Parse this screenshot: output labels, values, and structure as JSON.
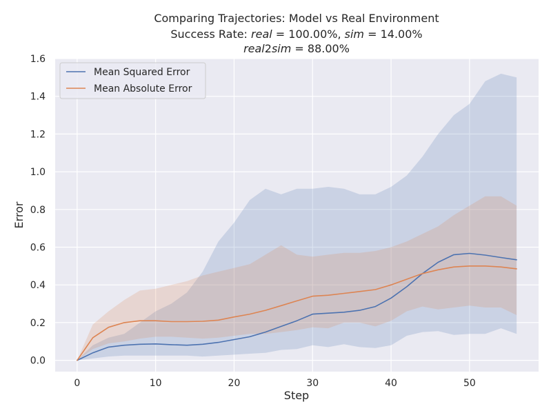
{
  "chart_data": {
    "type": "line",
    "title_lines": [
      "Comparing Trajectories: Model vs Real Environment",
      "Success Rate: real = 100.00%, sim = 14.00%",
      "real2sim = 88.00%"
    ],
    "xlabel": "Step",
    "ylabel": "Error",
    "xlim": [
      -2.8,
      58.8
    ],
    "ylim": [
      -0.06,
      1.6
    ],
    "x_ticks": [
      0,
      10,
      20,
      30,
      40,
      50
    ],
    "y_ticks": [
      0.0,
      0.2,
      0.4,
      0.6,
      0.8,
      1.0,
      1.2,
      1.4,
      1.6
    ],
    "grid": true,
    "legend_position": "upper-left",
    "series": [
      {
        "name": "Mean Squared Error",
        "color": "#4c72b0",
        "x": [
          0,
          2,
          4,
          6,
          8,
          10,
          12,
          14,
          16,
          18,
          20,
          22,
          24,
          26,
          28,
          30,
          32,
          34,
          36,
          38,
          40,
          42,
          44,
          46,
          48,
          50,
          52,
          54,
          56
        ],
        "mean": [
          0.0,
          0.04,
          0.07,
          0.08,
          0.085,
          0.087,
          0.083,
          0.08,
          0.085,
          0.095,
          0.11,
          0.125,
          0.15,
          0.18,
          0.21,
          0.245,
          0.25,
          0.255,
          0.265,
          0.285,
          0.33,
          0.39,
          0.46,
          0.52,
          0.56,
          0.567,
          0.558,
          0.545,
          0.533
        ],
        "lower": [
          0.0,
          0.01,
          0.02,
          0.025,
          0.025,
          0.025,
          0.025,
          0.025,
          0.02,
          0.025,
          0.03,
          0.035,
          0.04,
          0.055,
          0.06,
          0.08,
          0.07,
          0.085,
          0.07,
          0.065,
          0.08,
          0.13,
          0.15,
          0.155,
          0.135,
          0.14,
          0.14,
          0.17,
          0.14
        ],
        "upper": [
          0.0,
          0.08,
          0.12,
          0.14,
          0.2,
          0.26,
          0.3,
          0.36,
          0.47,
          0.63,
          0.73,
          0.85,
          0.91,
          0.88,
          0.91,
          0.91,
          0.92,
          0.91,
          0.88,
          0.88,
          0.92,
          0.98,
          1.08,
          1.2,
          1.3,
          1.36,
          1.48,
          1.52,
          1.5
        ]
      },
      {
        "name": "Mean Absolute Error",
        "color": "#dd8452",
        "x": [
          0,
          2,
          4,
          6,
          8,
          10,
          12,
          14,
          16,
          18,
          20,
          22,
          24,
          26,
          28,
          30,
          32,
          34,
          36,
          38,
          40,
          42,
          44,
          46,
          48,
          50,
          52,
          54,
          56
        ],
        "mean": [
          0.0,
          0.12,
          0.175,
          0.2,
          0.21,
          0.21,
          0.205,
          0.205,
          0.207,
          0.213,
          0.23,
          0.245,
          0.265,
          0.29,
          0.315,
          0.34,
          0.345,
          0.355,
          0.365,
          0.375,
          0.4,
          0.43,
          0.46,
          0.48,
          0.495,
          0.5,
          0.5,
          0.495,
          0.485
        ],
        "lower": [
          0.0,
          0.06,
          0.09,
          0.1,
          0.115,
          0.125,
          0.125,
          0.12,
          0.115,
          0.12,
          0.13,
          0.14,
          0.14,
          0.15,
          0.16,
          0.175,
          0.17,
          0.2,
          0.2,
          0.18,
          0.21,
          0.26,
          0.285,
          0.27,
          0.28,
          0.29,
          0.28,
          0.28,
          0.24
        ],
        "upper": [
          0.0,
          0.19,
          0.26,
          0.32,
          0.37,
          0.38,
          0.4,
          0.42,
          0.45,
          0.47,
          0.49,
          0.51,
          0.56,
          0.61,
          0.56,
          0.55,
          0.56,
          0.57,
          0.57,
          0.58,
          0.6,
          0.63,
          0.67,
          0.71,
          0.77,
          0.82,
          0.87,
          0.87,
          0.82
        ]
      }
    ]
  }
}
